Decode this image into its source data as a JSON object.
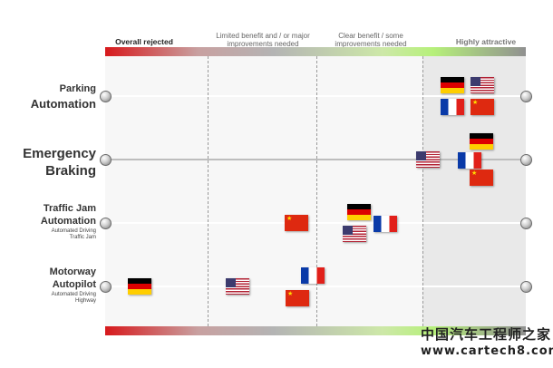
{
  "scale": {
    "top_labels": {
      "rejected": "Overall rejected",
      "limited": "Limited benefit and / or major improvements needed",
      "clear": "Clear benefit / some improvements needed",
      "attractive": "Highly attractive"
    }
  },
  "rows": [
    {
      "title_line1": "Parking",
      "title_line2": "Automation",
      "sub_line1": "",
      "sub_line2": "",
      "flags": [
        "germany",
        "usa",
        "france",
        "china"
      ]
    },
    {
      "title_line1": "Emergency",
      "title_line2": "Braking",
      "sub_line1": "",
      "sub_line2": "",
      "flags": [
        "germany",
        "usa",
        "france",
        "china"
      ]
    },
    {
      "title_line1": "Traffic Jam",
      "title_line2": "Automation",
      "sub_line1": "Automated Driving",
      "sub_line2": "Traffic Jam",
      "flags": [
        "china",
        "germany",
        "usa",
        "france"
      ]
    },
    {
      "title_line1": "Motorway",
      "title_line2": "Autopilot",
      "sub_line1": "Automated Driving",
      "sub_line2": "Highway",
      "flags": [
        "germany",
        "usa",
        "france",
        "china"
      ]
    }
  ],
  "flag_icons": {
    "germany": "germany-flag-icon",
    "france": "france-flag-icon",
    "china": "china-flag-icon",
    "usa": "usa-flag-icon"
  },
  "colors": {
    "rejected": "#d7191c",
    "clear": "#b6f07a",
    "attractive": "#909090"
  },
  "watermark": {
    "cn": "中国汽车工程师之家",
    "url": "www.cartech8.com"
  }
}
